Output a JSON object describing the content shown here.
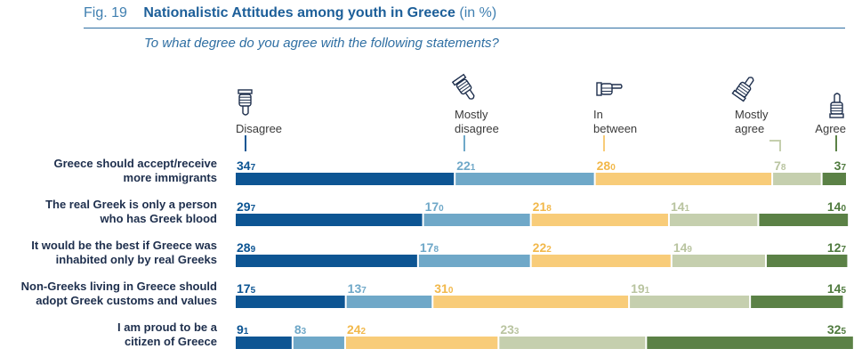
{
  "figure": {
    "label": "Fig. 19",
    "title": "Nationalistic Attitudes among youth in Greece",
    "unit": "(in %)",
    "question": "To what degree do you agree with the following statements?"
  },
  "chart_data": {
    "type": "bar",
    "stacked": true,
    "orientation": "horizontal",
    "title": "Nationalistic Attitudes among youth in Greece (in %)",
    "subtitle": "To what degree do you agree with the following statements?",
    "categories": [
      [
        "Greece should accept/receive",
        "more immigrants"
      ],
      [
        "The real Greek is only a person",
        "who has Greek blood"
      ],
      [
        "It would be the best if Greece was",
        "inhabited only by real Greeks"
      ],
      [
        "Non-Greeks living in Greece should",
        "adopt Greek customs and values"
      ],
      [
        "I am proud to be a",
        "citizen of Greece"
      ]
    ],
    "series": [
      {
        "name": "Disagree",
        "legend_lines": [
          "Disagree"
        ],
        "icon": "thumbs-down-icon",
        "color": "#0d5593",
        "text_color": "#0d5593",
        "values": [
          34.7,
          29.7,
          28.9,
          17.5,
          9.1
        ]
      },
      {
        "name": "Mostly disagree",
        "legend_lines": [
          "Mostly",
          "disagree"
        ],
        "icon": "tilted-thumbs-down-icon",
        "color": "#6fa8c8",
        "text_color": "#6fa8c8",
        "values": [
          22.1,
          17.0,
          17.8,
          13.7,
          8.3
        ]
      },
      {
        "name": "In between",
        "legend_lines": [
          "In",
          "between"
        ],
        "icon": "pointing-hand-icon",
        "color": "#f8cc79",
        "text_color": "#f2b84a",
        "values": [
          28.0,
          21.8,
          22.2,
          31.0,
          24.2
        ]
      },
      {
        "name": "Mostly agree",
        "legend_lines": [
          "Mostly",
          "agree"
        ],
        "icon": "tilted-thumbs-up-icon",
        "color": "#c5cfae",
        "text_color": "#b9c4a0",
        "values": [
          7.8,
          14.1,
          14.9,
          19.1,
          23.3
        ]
      },
      {
        "name": "Agree",
        "legend_lines": [
          "Agree"
        ],
        "icon": "thumbs-up-icon",
        "color": "#5b8146",
        "text_color": "#4f7a3e",
        "values": [
          3.7,
          14.0,
          12.7,
          14.5,
          32.5
        ]
      }
    ],
    "xlim": [
      0,
      96.3
    ],
    "grid": false,
    "legend_placement": "top"
  }
}
